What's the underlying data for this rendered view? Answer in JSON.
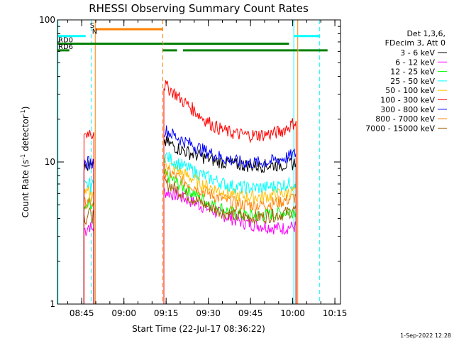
{
  "chart_data": {
    "type": "line",
    "title": "RHESSI Observing Summary Count Rates",
    "xlabel": "Start Time (22-Jul-17 08:36:22)",
    "ylabel_main": "Count Rate (s",
    "ylabel_sup": "-1",
    "ylabel_mid": " detector",
    "ylabel_tail": ")",
    "yscale": "log",
    "ylim": [
      1,
      100
    ],
    "xlim": [
      "08:36:22",
      "10:17:00"
    ],
    "xlim_minutes": [
      516.37,
      617.0
    ],
    "x_ticks": [
      {
        "label": "08:45",
        "minutes": 525
      },
      {
        "label": "09:00",
        "minutes": 540
      },
      {
        "label": "09:15",
        "minutes": 555
      },
      {
        "label": "09:30",
        "minutes": 570
      },
      {
        "label": "09:45",
        "minutes": 585
      },
      {
        "label": "10:00",
        "minutes": 600
      },
      {
        "label": "10:15",
        "minutes": 615
      }
    ],
    "y_ticks": [
      {
        "label": "1",
        "value": 1
      },
      {
        "label": "10",
        "value": 10
      },
      {
        "label": "100",
        "value": 100
      }
    ],
    "legend_header": [
      "Det 1,3,6,",
      "FDecim 3, Att 0"
    ],
    "legend_position": "right",
    "series": [
      {
        "name": "3 - 6 keV",
        "color": "#000000",
        "segments": [
          {
            "x": [
              525.8,
              526.5,
              527.5,
              528.5,
              529.3
            ],
            "y": [
              9.2,
              9.0,
              9.4,
              9.1,
              9.3
            ]
          },
          {
            "x": [
              554.2,
              557,
              560,
              564,
              568,
              572,
              576,
              580,
              584,
              588,
              592,
              596,
              599,
              601.2
            ],
            "y": [
              14.0,
              13.2,
              12.3,
              11.5,
              10.9,
              10.3,
              9.9,
              9.6,
              9.5,
              9.4,
              9.5,
              9.6,
              9.7,
              9.9
            ]
          }
        ]
      },
      {
        "name": "6 - 12 keV",
        "color": "#ff00ff",
        "segments": [
          {
            "x": [
              525.8,
              526.5,
              527.5,
              528.5,
              529.3
            ],
            "y": [
              3.4,
              3.3,
              3.6,
              3.4,
              3.5
            ]
          },
          {
            "x": [
              554.2,
              557,
              560,
              564,
              568,
              572,
              576,
              580,
              584,
              588,
              592,
              596,
              599,
              601.2
            ],
            "y": [
              6.2,
              6.0,
              5.7,
              5.3,
              4.9,
              4.5,
              4.2,
              3.9,
              3.7,
              3.6,
              3.5,
              3.4,
              3.5,
              3.5
            ]
          }
        ]
      },
      {
        "name": "12 - 25 keV",
        "color": "#00ff00",
        "segments": [
          {
            "x": [
              525.8,
              526.5,
              527.5,
              528.5,
              529.3
            ],
            "y": [
              4.8,
              4.6,
              5.0,
              4.7,
              4.9
            ]
          },
          {
            "x": [
              554.2,
              557,
              560,
              564,
              568,
              572,
              576,
              580,
              584,
              588,
              592,
              596,
              599,
              601.2
            ],
            "y": [
              8.2,
              7.6,
              6.9,
              6.2,
              5.5,
              5.0,
              4.6,
              4.3,
              4.2,
              4.2,
              4.3,
              4.4,
              4.5,
              4.6
            ]
          }
        ]
      },
      {
        "name": "25 - 50 keV",
        "color": "#00ffff",
        "segments": [
          {
            "x": [
              525.8,
              526.5,
              527.5,
              528.5,
              529.3
            ],
            "y": [
              6.9,
              6.7,
              7.1,
              6.8,
              7.0
            ]
          },
          {
            "x": [
              554.2,
              557,
              560,
              564,
              568,
              572,
              576,
              580,
              584,
              588,
              592,
              596,
              599,
              601.2
            ],
            "y": [
              11.2,
              10.4,
              9.6,
              8.8,
              8.1,
              7.5,
              7.0,
              6.7,
              6.6,
              6.6,
              6.7,
              6.9,
              7.1,
              7.3
            ]
          }
        ]
      },
      {
        "name": "50 - 100 keV",
        "color": "#ffc000",
        "segments": [
          {
            "x": [
              525.8,
              526.5,
              527.5,
              528.5,
              529.3
            ],
            "y": [
              6.0,
              5.8,
              6.2,
              5.9,
              6.1
            ]
          },
          {
            "x": [
              554.2,
              557,
              560,
              564,
              568,
              572,
              576,
              580,
              584,
              588,
              592,
              596,
              599,
              601.2
            ],
            "y": [
              10.0,
              9.3,
              8.5,
              7.7,
              7.0,
              6.5,
              6.1,
              5.8,
              5.7,
              5.7,
              5.8,
              6.0,
              6.2,
              6.4
            ]
          }
        ]
      },
      {
        "name": "100 - 300 keV",
        "color": "#ff0000",
        "segments": [
          {
            "x": [
              525.8,
              526.5,
              527.5,
              528.5,
              529.3
            ],
            "y": [
              16.0,
              15.5,
              16.5,
              15.8,
              16.2
            ]
          },
          {
            "x": [
              554.2,
              557,
              560,
              564,
              568,
              572,
              576,
              580,
              584,
              588,
              592,
              596,
              599,
              601.2
            ],
            "y": [
              35.0,
              32.0,
              28.0,
              24.0,
              20.5,
              18.0,
              16.5,
              15.8,
              15.5,
              15.5,
              15.8,
              16.5,
              18.0,
              19.5
            ]
          }
        ]
      },
      {
        "name": "300 - 800 keV",
        "color": "#0000ff",
        "segments": [
          {
            "x": [
              525.8,
              526.5,
              527.5,
              528.5,
              529.3
            ],
            "y": [
              9.8,
              9.5,
              10.1,
              9.7,
              10.0
            ]
          },
          {
            "x": [
              554.2,
              557,
              560,
              564,
              568,
              572,
              576,
              580,
              584,
              588,
              592,
              596,
              599,
              601.2
            ],
            "y": [
              17.0,
              15.8,
              14.5,
              13.3,
              12.2,
              11.3,
              10.6,
              10.1,
              9.9,
              9.9,
              10.1,
              10.5,
              11.0,
              11.5
            ]
          }
        ]
      },
      {
        "name": "800 - 7000 keV",
        "color": "#ff8000",
        "segments": [
          {
            "x": [
              525.8,
              526.5,
              527.5,
              528.5,
              529.3
            ],
            "y": [
              5.2,
              5.0,
              5.4,
              5.1,
              5.3
            ]
          },
          {
            "x": [
              554.2,
              557,
              560,
              564,
              568,
              572,
              576,
              580,
              584,
              588,
              592,
              596,
              599,
              601.2
            ],
            "y": [
              8.8,
              8.3,
              7.6,
              6.9,
              6.3,
              5.8,
              5.4,
              5.1,
              5.0,
              5.0,
              5.1,
              5.3,
              5.5,
              5.7
            ]
          }
        ]
      },
      {
        "name": "7000 - 15000 keV",
        "color": "#a06000",
        "segments": [
          {
            "x": [
              525.8,
              526.5,
              527.5,
              528.5,
              529.3
            ],
            "y": [
              4.2,
              4.0,
              4.4,
              4.1,
              4.3
            ]
          },
          {
            "x": [
              554.2,
              557,
              560,
              564,
              568,
              572,
              576,
              580,
              584,
              588,
              592,
              596,
              599,
              601.2
            ],
            "y": [
              7.2,
              6.8,
              6.2,
              5.6,
              5.1,
              4.7,
              4.4,
              4.2,
              4.1,
              4.1,
              4.2,
              4.3,
              4.5,
              4.6
            ]
          }
        ]
      }
    ],
    "flag_bars": [
      {
        "label": "",
        "color": "#00ffff",
        "segments": [
          [
            516.37,
            526.4
          ],
          [
            600.4,
            609.6
          ]
        ],
        "value": 77
      },
      {
        "label": "",
        "color": "#ff8000",
        "segments": [
          [
            529.9,
            553.8
          ]
        ],
        "value": 86
      },
      {
        "label": "RD0",
        "color": "#008000",
        "segments": [
          [
            516.37,
            553.8
          ],
          [
            554.0,
            598.7
          ]
        ],
        "value": 68
      },
      {
        "label": "RD6",
        "color": "#008000",
        "segments": [
          [
            516.37,
            520.6
          ],
          [
            553.8,
            558.9
          ],
          [
            561.0,
            601.7
          ],
          [
            602.0,
            612.4
          ]
        ],
        "value": 61
      }
    ],
    "flag_letters": [
      {
        "text": "S",
        "color": "#ff8000",
        "minutes": 528.7,
        "value": 88
      },
      {
        "text": "N",
        "color": "#00ffff",
        "minutes": 529.6,
        "value": 80
      }
    ],
    "vertical_markers": [
      {
        "minutes": 516.55,
        "color": "#00ffff",
        "style": "solid"
      },
      {
        "minutes": 528.4,
        "color": "#00ffff",
        "style": "dashed"
      },
      {
        "minutes": 529.8,
        "color": "#ff8000",
        "style": "solid"
      },
      {
        "minutes": 553.8,
        "color": "#ff8000",
        "style": "dashed"
      },
      {
        "minutes": 600.4,
        "color": "#00ffff",
        "style": "solid"
      },
      {
        "minutes": 601.8,
        "color": "#ff8000",
        "style": "solid"
      },
      {
        "minutes": 609.6,
        "color": "#00ffff",
        "style": "dashed"
      }
    ]
  },
  "timestamp": "1-Sep-2022 12:28"
}
